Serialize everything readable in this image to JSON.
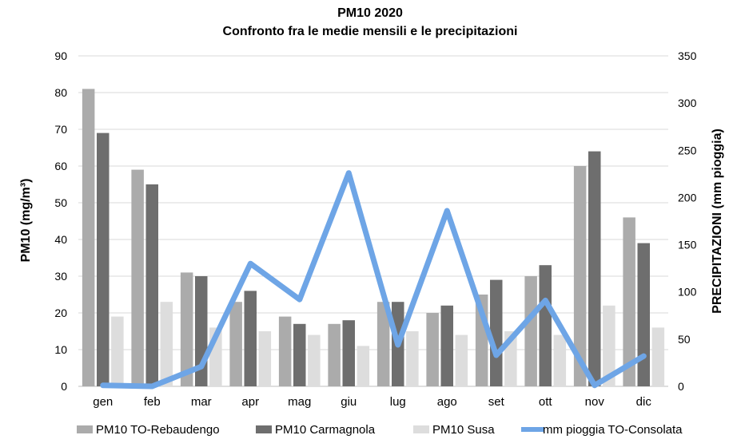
{
  "chart_data": {
    "type": "bar",
    "title": "PM10 2020",
    "subtitle": "Confronto fra le medie mensili e le precipitazioni",
    "ylabel": "PM10 (mg/m³)",
    "y2label": "PRECIPITAZIONI  (mm pioggia)",
    "ylim": [
      0,
      90
    ],
    "y2lim": [
      0,
      350
    ],
    "yticks": [
      0,
      10,
      20,
      30,
      40,
      50,
      60,
      70,
      80,
      90
    ],
    "y2ticks": [
      0,
      50,
      100,
      150,
      200,
      250,
      300,
      350
    ],
    "grid": true,
    "legend_position": "bottom",
    "categories": [
      "gen",
      "feb",
      "mar",
      "apr",
      "mag",
      "giu",
      "lug",
      "ago",
      "set",
      "ott",
      "nov",
      "dic"
    ],
    "series": [
      {
        "name": "PM10 TO-Rebaudengo",
        "type": "bar",
        "axis": "left",
        "color": "#ababab",
        "values": [
          81,
          59,
          31,
          23,
          19,
          17,
          23,
          20,
          25,
          30,
          60,
          46
        ]
      },
      {
        "name": "PM10 Carmagnola",
        "type": "bar",
        "axis": "left",
        "color": "#6e6e6e",
        "values": [
          69,
          55,
          30,
          26,
          17,
          18,
          23,
          22,
          29,
          33,
          64,
          39
        ]
      },
      {
        "name": "PM10 Susa",
        "type": "bar",
        "axis": "left",
        "color": "#dddddd",
        "values": [
          19,
          23,
          16,
          15,
          14,
          11,
          15,
          14,
          15,
          14,
          22,
          16
        ]
      },
      {
        "name": "mm pioggia TO-Consolata",
        "type": "line",
        "axis": "right",
        "color": "#6ea5e6",
        "values": [
          1,
          0,
          21,
          130,
          92,
          226,
          44,
          186,
          33,
          91,
          1,
          32
        ]
      }
    ]
  }
}
